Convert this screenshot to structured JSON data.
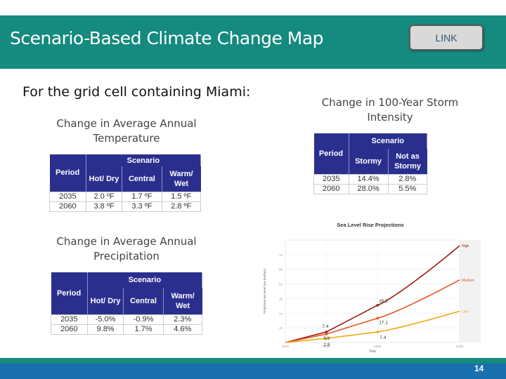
{
  "header": {
    "title": "Scenario-Based Climate Change Map",
    "link_label": "LINK"
  },
  "subtitle": "For the grid cell containing Miami:",
  "temperature": {
    "title_line1": "Change in Average Annual",
    "title_line2": "Temperature",
    "scenario_label": "Scenario",
    "columns": [
      "Period",
      "Hot/ Dry",
      "Central",
      "Warm/ Wet"
    ],
    "rows": [
      [
        "2035",
        "2.0 ºF",
        "1.7 ºF",
        "1.5 ºF"
      ],
      [
        "2060",
        "3.8 ºF",
        "3.3 ºF",
        "2.8 ºF"
      ]
    ]
  },
  "precipitation": {
    "title_line1": "Change in Average Annual",
    "title_line2": "Precipitation",
    "scenario_label": "Scenario",
    "columns": [
      "Period",
      "Hot/ Dry",
      "Central",
      "Warm/ Wet"
    ],
    "rows": [
      [
        "2035",
        "-5.0%",
        "-0.9%",
        "2.3%"
      ],
      [
        "2060",
        "9.8%",
        "1.7%",
        "4.6%"
      ]
    ]
  },
  "storm": {
    "title_line1": "Change in 100-Year Storm",
    "title_line2": "Intensity",
    "scenario_label": "Scenario",
    "columns": [
      "Period",
      "Stormy",
      "Not as Stormy"
    ],
    "rows": [
      [
        "2035",
        "14.4%",
        "2.8%"
      ],
      [
        "2060",
        "28.0%",
        "5.5%"
      ]
    ]
  },
  "page_number": "14",
  "chart_data": {
    "type": "line",
    "title": "Sea Level Rise Projections",
    "xlabel": "Year",
    "ylabel": "Projected sea level rise (inches)",
    "x_ticks": [
      "2015",
      "2035",
      "2060",
      "2100"
    ],
    "y_ticks": [
      "10",
      "14",
      "18",
      "62",
      "66",
      "72"
    ],
    "series": [
      {
        "name": "High",
        "color": "#9a1a10",
        "x": [
          2015,
          2035,
          2060,
          2100
        ],
        "y": [
          0,
          7.4,
          26.2,
          68
        ]
      },
      {
        "name": "Medium",
        "color": "#e4571f",
        "x": [
          2015,
          2035,
          2060,
          2100
        ],
        "y": [
          0,
          5.9,
          17.1,
          44
        ]
      },
      {
        "name": "Low",
        "color": "#f0a818",
        "x": [
          2015,
          2035,
          2060,
          2100
        ],
        "y": [
          0,
          2.9,
          7.4,
          22
        ]
      }
    ],
    "data_labels": [
      {
        "text": "7.4"
      },
      {
        "text": "5.9"
      },
      {
        "text": "2.9"
      },
      {
        "text": "26.2"
      },
      {
        "text": "17.1"
      },
      {
        "text": "7.4"
      }
    ]
  }
}
